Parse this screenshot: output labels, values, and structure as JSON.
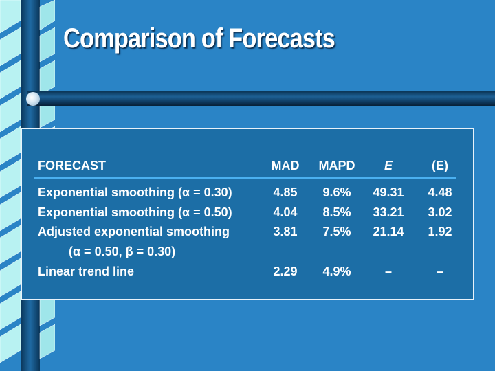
{
  "title": "Comparison of Forecasts",
  "table": {
    "headers": {
      "forecast": "FORECAST",
      "mad": "MAD",
      "mapd": "MAPD",
      "e": "E",
      "sum_e": "(E)"
    },
    "rows": [
      {
        "label": "Exponential smoothing (α = 0.30)",
        "mad": "4.85",
        "mapd": "9.6%",
        "e": "49.31",
        "sum_e": "4.48"
      },
      {
        "label": "Exponential smoothing (α = 0.50)",
        "mad": "4.04",
        "mapd": "8.5%",
        "e": "33.21",
        "sum_e": "3.02"
      },
      {
        "label": "Adjusted exponential smoothing",
        "sublabel": "(α = 0.50, β = 0.30)",
        "mad": "3.81",
        "mapd": "7.5%",
        "e": "21.14",
        "sum_e": "1.92"
      },
      {
        "label": "Linear trend line",
        "mad": "2.29",
        "mapd": "4.9%",
        "e": "–",
        "sum_e": "–"
      }
    ]
  },
  "colors": {
    "background": "#2a84c6",
    "panel": "#1c6ea6",
    "divider": "#4ab0f0",
    "text": "#ffffff"
  }
}
